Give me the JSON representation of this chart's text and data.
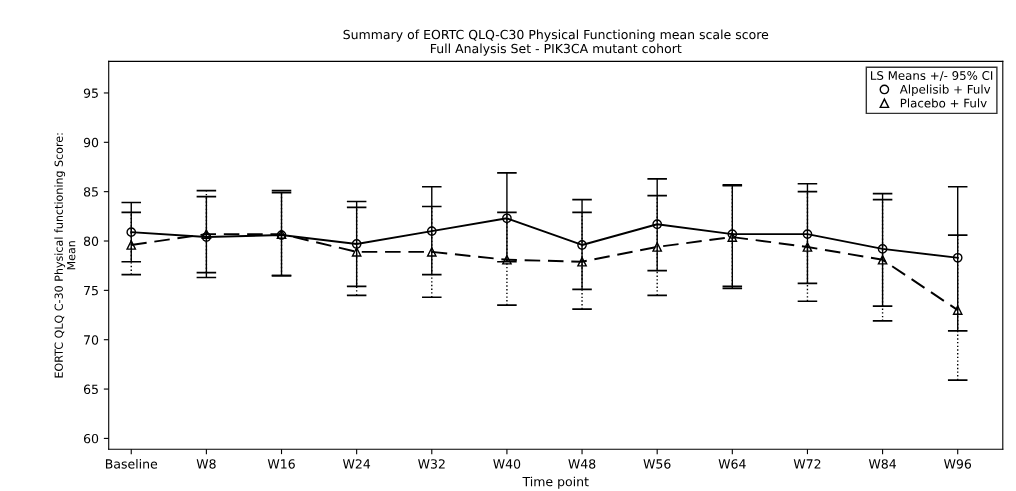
{
  "chart_data": {
    "type": "line",
    "title": "Summary of EORTC QLQ-C30 Physical Functioning mean scale score\nFull Analysis Set - PIK3CA mutant cohort",
    "xlabel": "Time point",
    "ylabel": "EORTC QLQ C-30 Physical functioning Score:\nMean",
    "legend_title": "LS Means +/- 95% CI",
    "legend": "top right",
    "grid": false,
    "categories": [
      "Baseline",
      "W8",
      "W16",
      "W24",
      "W32",
      "W40",
      "W48",
      "W56",
      "W64",
      "W72",
      "W84",
      "W96"
    ],
    "ylim": [
      58.9,
      98.2
    ],
    "yticks": [
      60,
      65,
      70,
      75,
      80,
      85,
      90,
      95
    ],
    "series": [
      {
        "name": "Alpelisib + Fulv",
        "color": "#000000",
        "marker": "circle",
        "line_style": "solid",
        "values": [
          80.9,
          80.4,
          80.6,
          79.7,
          81.0,
          82.3,
          79.6,
          81.7,
          80.7,
          80.7,
          79.2,
          78.3
        ],
        "errors": [
          [
            77.9,
            83.9
          ],
          [
            76.3,
            84.5
          ],
          [
            76.5,
            84.9
          ],
          [
            75.4,
            84.0
          ],
          [
            76.6,
            85.5
          ],
          [
            77.9,
            86.9
          ],
          [
            75.1,
            84.2
          ],
          [
            77.0,
            86.3
          ],
          [
            75.4,
            85.7
          ],
          [
            75.7,
            85.8
          ],
          [
            73.4,
            84.8
          ],
          [
            70.9,
            85.5
          ]
        ]
      },
      {
        "name": "Placebo + Fulv",
        "color": "#000000",
        "marker": "triangle",
        "line_style": "dashed",
        "values": [
          79.6,
          80.7,
          80.7,
          78.9,
          78.9,
          78.1,
          77.9,
          79.4,
          80.4,
          79.4,
          78.1,
          73.0
        ],
        "errors": [
          [
            76.6,
            82.9
          ],
          [
            76.8,
            85.1
          ],
          [
            76.5,
            85.1
          ],
          [
            74.5,
            83.4
          ],
          [
            74.3,
            83.5
          ],
          [
            73.5,
            82.9
          ],
          [
            73.1,
            82.9
          ],
          [
            74.5,
            84.6
          ],
          [
            75.2,
            85.6
          ],
          [
            73.9,
            85.0
          ],
          [
            71.9,
            84.2
          ],
          [
            65.9,
            80.6
          ]
        ]
      }
    ]
  }
}
